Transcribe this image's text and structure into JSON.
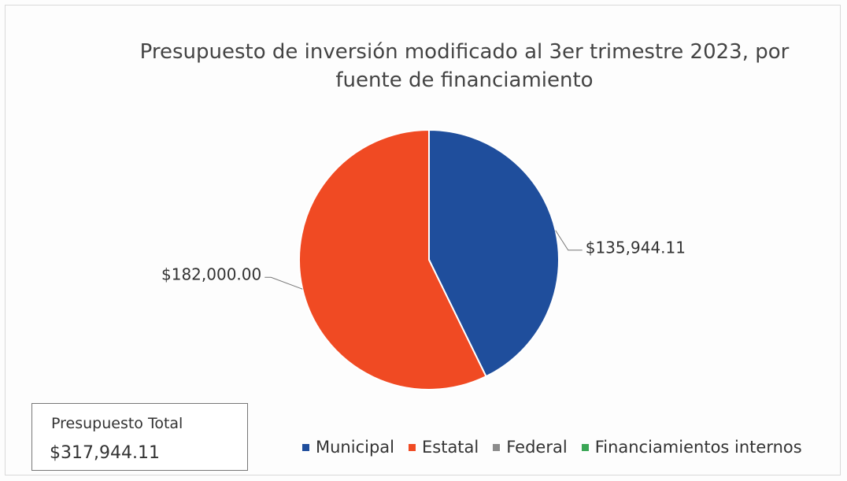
{
  "chart_data": {
    "type": "pie",
    "title": "Presupuesto de inversión modificado al 3er trimestre 2023, por fuente de financiamiento",
    "categories": [
      "Municipal",
      "Estatal",
      "Federal",
      "Financiamientos internos"
    ],
    "values": [
      135944.11,
      182000,
      0,
      0
    ],
    "value_labels": [
      "$135,944.11",
      "$182,000.00",
      null,
      null
    ],
    "colors": [
      "#1f4e9c",
      "#f04a23",
      "#8c8c8c",
      "#3aa655"
    ],
    "legend": "bottom",
    "annotation": {
      "label": "Presupuesto Total",
      "text": "$317,944.11"
    }
  }
}
